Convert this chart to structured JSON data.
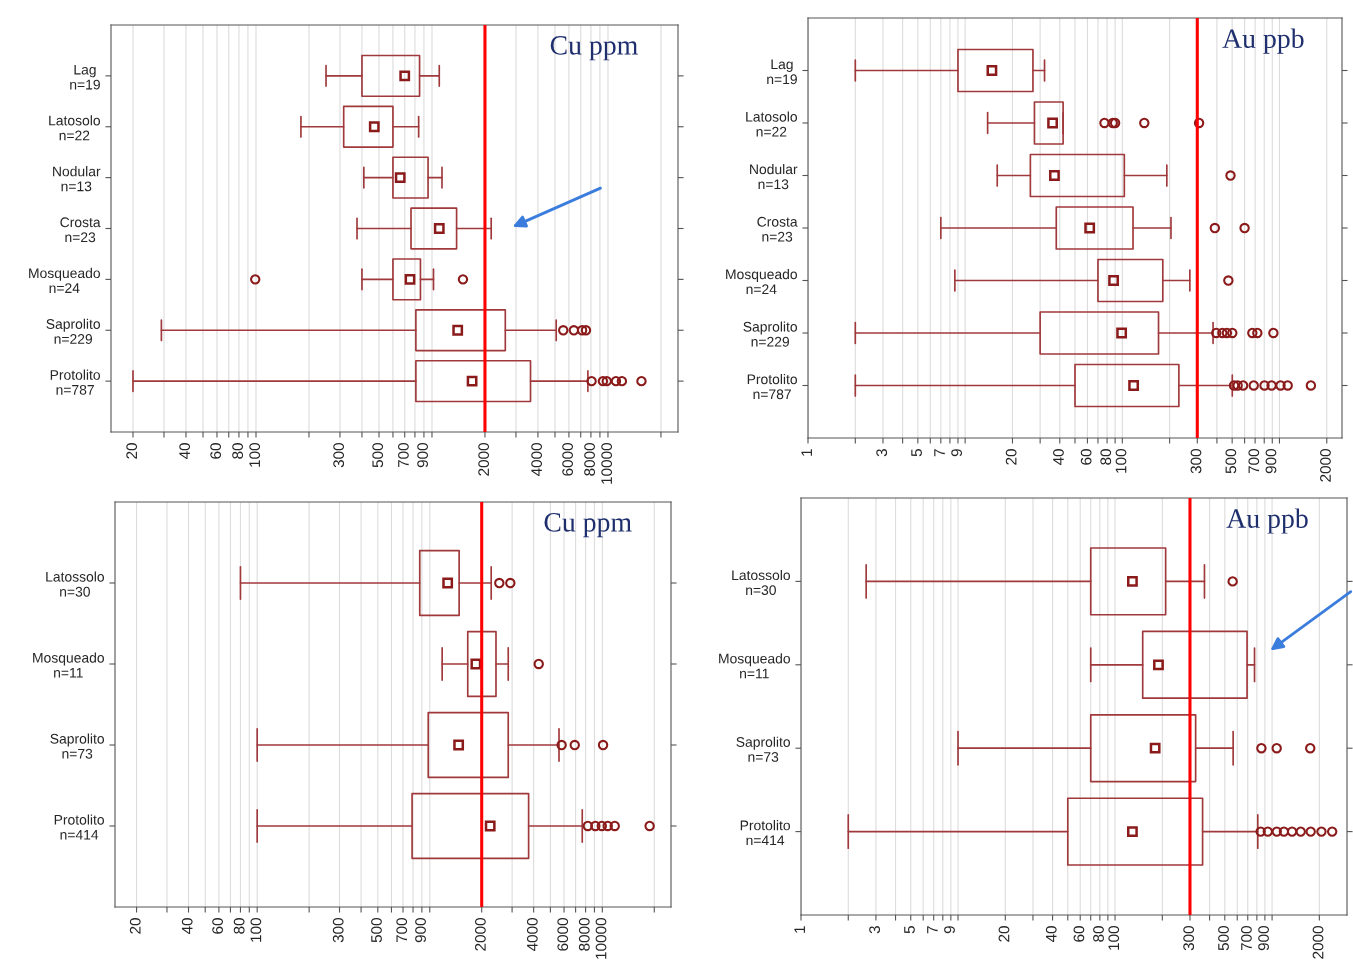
{
  "chart_data": [
    {
      "type": "box",
      "orientation": "horizontal",
      "title": "Cu ppm",
      "color": "#a0393c",
      "log": "x",
      "grid": "x",
      "categories": [
        "Lag\nn=19",
        "Latosolo\nn=22",
        "Nodular\nn=13",
        "Crosta\nn=23",
        "Mosqueado\nn=24",
        "Saprolito\nn=229",
        "Protolito\nn=787"
      ],
      "boxes": [
        {
          "low": 250,
          "q1": 400,
          "median": 700,
          "q3": 850,
          "high": 1100
        },
        {
          "low": 180,
          "q1": 315,
          "median": 470,
          "q3": 600,
          "high": 840
        },
        {
          "low": 410,
          "q1": 600,
          "median": 660,
          "q3": 950,
          "high": 1140
        },
        {
          "low": 375,
          "q1": 760,
          "median": 1100,
          "q3": 1380,
          "high": 2170
        },
        {
          "low": 400,
          "q1": 600,
          "median": 750,
          "q3": 860,
          "high": 1020,
          "outliers": [
            99,
            1500
          ]
        },
        {
          "low": 29,
          "q1": 810,
          "median": 1400,
          "q3": 2610,
          "high": 5080,
          "outliers": [
            5570,
            6400,
            7130,
            7500
          ]
        },
        {
          "low": 20,
          "q1": 810,
          "median": 1690,
          "q3": 3630,
          "high": 7690,
          "outliers": [
            8070,
            9360,
            9840,
            11100,
            12000,
            15500
          ]
        }
      ],
      "xlim": [
        15,
        25000
      ],
      "xticks": [
        20,
        {
          "value": 30,
          "label": null
        },
        40,
        {
          "value": 50,
          "label": null
        },
        60,
        {
          "value": 70,
          "label": null
        },
        80,
        {
          "value": 90,
          "label": null
        },
        100,
        {
          "value": 200,
          "label": null
        },
        300,
        {
          "value": 400,
          "label": null
        },
        500,
        {
          "value": 600,
          "label": null
        },
        700,
        {
          "value": 800,
          "label": null
        },
        900,
        {
          "value": 1000,
          "label": null
        },
        2000,
        {
          "value": 3000,
          "label": null
        },
        4000,
        {
          "value": 5000,
          "label": null
        },
        6000,
        {
          "value": 7000,
          "label": null
        },
        8000,
        {
          "value": 9000,
          "label": null
        },
        10000,
        {
          "value": 20000,
          "label": null
        }
      ],
      "ref_lines": [
        {
          "axis": "x",
          "value": 2000,
          "color": "#ff0000"
        }
      ]
    },
    {
      "type": "box",
      "orientation": "horizontal",
      "title": "Au ppb",
      "color": "#a0393c",
      "log": "x",
      "grid": "x",
      "categories": [
        "Lag\nn=19",
        "Latosolo\nn=22",
        "Nodular\nn=13",
        "Crosta\nn=23",
        "Mosqueado\nn=24",
        "Saprolito\nn=229",
        "Protolito\nn=787"
      ],
      "boxes": [
        {
          "low": 2,
          "q1": 9,
          "median": 14.8,
          "q3": 27,
          "high": 32
        },
        {
          "low": 13.9,
          "q1": 27.6,
          "median": 36,
          "q3": 42,
          "high": 42,
          "outliers": [
            77,
            87,
            90,
            138,
            308
          ]
        },
        {
          "low": 16,
          "q1": 26,
          "median": 37,
          "q3": 103,
          "high": 192,
          "outliers": [
            488
          ]
        },
        {
          "low": 7,
          "q1": 38,
          "median": 62,
          "q3": 117,
          "high": 204,
          "outliers": [
            388,
            600
          ]
        },
        {
          "low": 8.6,
          "q1": 70,
          "median": 88,
          "q3": 181,
          "high": 269,
          "outliers": [
            473
          ]
        },
        {
          "low": 2,
          "q1": 30,
          "median": 99,
          "q3": 170,
          "high": 378,
          "outliers": [
            396,
            433,
            463,
            501,
            672,
            723,
            915
          ]
        },
        {
          "low": 2,
          "q1": 50,
          "median": 118,
          "q3": 229,
          "high": 501,
          "outliers": [
            514,
            542,
            587,
            686,
            803,
            891,
            1016,
            1128,
            1585
          ]
        }
      ],
      "xlim": [
        1,
        2500
      ],
      "xticks": [
        1,
        {
          "value": 2,
          "label": null
        },
        3,
        {
          "value": 4,
          "label": null
        },
        5,
        {
          "value": 6,
          "label": null
        },
        7,
        {
          "value": 8,
          "label": null
        },
        9,
        {
          "value": 10,
          "label": null
        },
        20,
        {
          "value": 30,
          "label": null
        },
        40,
        {
          "value": 50,
          "label": null
        },
        60,
        {
          "value": 70,
          "label": null
        },
        80,
        {
          "value": 90,
          "label": null
        },
        100,
        {
          "value": 200,
          "label": null
        },
        300,
        {
          "value": 400,
          "label": null
        },
        500,
        {
          "value": 600,
          "label": null
        },
        700,
        {
          "value": 800,
          "label": null
        },
        900,
        {
          "value": 1000,
          "label": null
        },
        2000
      ],
      "ref_lines": [
        {
          "axis": "x",
          "value": 300,
          "color": "#ff0000"
        }
      ]
    },
    {
      "type": "box",
      "orientation": "horizontal",
      "title": "Cu ppm",
      "color": "#a0393c",
      "log": "x",
      "grid": "x",
      "categories": [
        "Latossolo\nn=30",
        "Mosqueado\nn=11",
        "Saprolito\nn=73",
        "Protolito\nn=414"
      ],
      "boxes": [
        {
          "low": 80,
          "q1": 875,
          "median": 1270,
          "q3": 1480,
          "high": 2270,
          "outliers": [
            2530,
            2930
          ]
        },
        {
          "low": 1180,
          "q1": 1660,
          "median": 1850,
          "q3": 2420,
          "high": 2850,
          "outliers": [
            4280
          ]
        },
        {
          "low": 100,
          "q1": 980,
          "median": 1470,
          "q3": 2850,
          "high": 5610,
          "outliers": [
            5810,
            6920,
            10100
          ]
        },
        {
          "low": 100,
          "q1": 790,
          "median": 2240,
          "q3": 3740,
          "high": 7650,
          "outliers": [
            8240,
            9110,
            9930,
            10750,
            11800,
            18800
          ]
        }
      ],
      "xlim": [
        15,
        25000
      ],
      "xticks": [
        20,
        {
          "value": 30,
          "label": null
        },
        40,
        {
          "value": 50,
          "label": null
        },
        60,
        {
          "value": 70,
          "label": null
        },
        80,
        {
          "value": 90,
          "label": null
        },
        100,
        {
          "value": 200,
          "label": null
        },
        300,
        {
          "value": 400,
          "label": null
        },
        500,
        {
          "value": 600,
          "label": null
        },
        700,
        {
          "value": 800,
          "label": null
        },
        900,
        {
          "value": 1000,
          "label": null
        },
        2000,
        {
          "value": 3000,
          "label": null
        },
        4000,
        {
          "value": 5000,
          "label": null
        },
        6000,
        {
          "value": 7000,
          "label": null
        },
        8000,
        {
          "value": 9000,
          "label": null
        },
        10000,
        {
          "value": 20000,
          "label": null
        }
      ],
      "ref_lines": [
        {
          "axis": "x",
          "value": 2000,
          "color": "#ff0000"
        }
      ]
    },
    {
      "type": "box",
      "orientation": "horizontal",
      "title": "Au ppb",
      "color": "#a0393c",
      "log": "x",
      "grid": "x",
      "categories": [
        "Latossolo\nn=30",
        "Mosqueado\nn=11",
        "Saprolito\nn=73",
        "Protolito\nn=414"
      ],
      "boxes": [
        {
          "low": 2.6,
          "q1": 70,
          "median": 129,
          "q3": 210,
          "high": 371,
          "outliers": [
            561
          ]
        },
        {
          "low": 70,
          "q1": 150,
          "median": 189,
          "q3": 693,
          "high": 773
        },
        {
          "low": 10,
          "q1": 70,
          "median": 180,
          "q3": 326,
          "high": 565,
          "outliers": [
            855,
            1070,
            1750
          ]
        },
        {
          "low": 2,
          "q1": 50,
          "median": 129,
          "q3": 361,
          "high": 811,
          "outliers": [
            846,
            939,
            1071,
            1189,
            1341,
            1522,
            1762,
            2062,
            2414
          ]
        }
      ],
      "xlim": [
        1,
        3000
      ],
      "xticks": [
        1,
        {
          "value": 2,
          "label": null
        },
        3,
        {
          "value": 4,
          "label": null
        },
        5,
        {
          "value": 6,
          "label": null
        },
        7,
        {
          "value": 8,
          "label": null
        },
        9,
        {
          "value": 10,
          "label": null
        },
        20,
        {
          "value": 30,
          "label": null
        },
        40,
        {
          "value": 50,
          "label": null
        },
        60,
        {
          "value": 70,
          "label": null
        },
        80,
        {
          "value": 90,
          "label": null
        },
        100,
        {
          "value": 200,
          "label": null
        },
        300,
        {
          "value": 400,
          "label": null
        },
        500,
        {
          "value": 600,
          "label": null
        },
        700,
        {
          "value": 800,
          "label": null
        },
        900,
        {
          "value": 1000,
          "label": null
        },
        2000
      ],
      "ref_lines": [
        {
          "axis": "x",
          "value": 300,
          "color": "#ff0000"
        }
      ]
    }
  ]
}
